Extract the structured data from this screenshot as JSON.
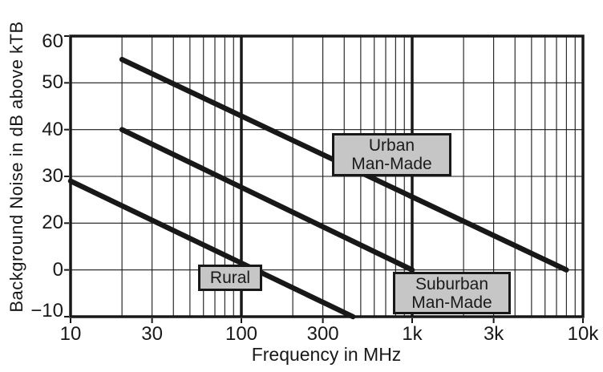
{
  "figure": {
    "background": "#ffffff",
    "ink_color": "#181818",
    "callout_fill": "#c6c6c6"
  },
  "chart_data": {
    "type": "line",
    "title": "",
    "xlabel": "Frequency in MHz",
    "ylabel": "Background Noise in dB above kTB",
    "x_axis": {
      "label": "Frequency in MHz",
      "scale": "log",
      "min": 10,
      "max": 10000,
      "tick_values": [
        10,
        30,
        100,
        300,
        1000,
        3000,
        10000
      ],
      "tick_labels": [
        "10",
        "30",
        "100",
        "300",
        "1k",
        "3k",
        "10k"
      ],
      "heavy_gridlines": [
        100,
        1000
      ],
      "minor_gridline_multiples": [
        2,
        3,
        4,
        5,
        6,
        7,
        8,
        9
      ],
      "grid": "on"
    },
    "y_axis": {
      "label": "Background Noise in dB above kTB",
      "scale": "as-printed (tick labels equally spaced; value 10 is skipped between 20 and 0)",
      "tick_values": [
        60,
        50,
        40,
        30,
        20,
        0,
        -10
      ],
      "tick_labels": [
        "60",
        "50",
        "40",
        "30",
        "20",
        "0",
        "−10"
      ],
      "grid": "on"
    },
    "series": [
      {
        "name": "Urban Man-Made",
        "points": [
          {
            "f_mhz": 20,
            "db": 55
          },
          {
            "f_mhz": 8000,
            "db": 0
          }
        ]
      },
      {
        "name": "Suburban Man-Made",
        "points": [
          {
            "f_mhz": 20,
            "db": 40
          },
          {
            "f_mhz": 1000,
            "db": 0
          }
        ]
      },
      {
        "name": "Rural",
        "points": [
          {
            "f_mhz": 10,
            "db": 29
          },
          {
            "f_mhz": 450,
            "db": -10
          }
        ]
      }
    ],
    "annotations": [
      {
        "line1": "Urban",
        "line2": "Man-Made"
      },
      {
        "line1": "Rural",
        "line2": ""
      },
      {
        "line1": "Suburban",
        "line2": "Man-Made"
      }
    ],
    "legend": "none (boxed labels placed on plot)"
  }
}
